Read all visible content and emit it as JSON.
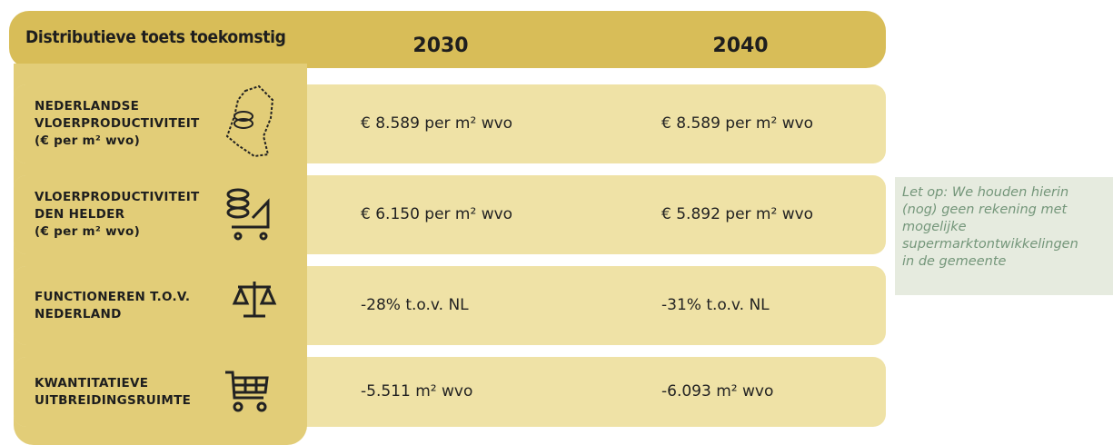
{
  "header": {
    "title": "Distributieve toets toekomstig",
    "columns": [
      "2030",
      "2040"
    ]
  },
  "table": {
    "rows": [
      {
        "label": [
          "NEDERLANDSE",
          "VLOERPRODUCTIVITEIT",
          "(€ per m² wvo)"
        ],
        "values": [
          "€ 8.589 per m² wvo",
          "€ 8.589 per m² wvo"
        ]
      },
      {
        "label": [
          "VLOERPRODUCTIVITEIT",
          "DEN HELDER",
          "(€ per m² wvo)"
        ],
        "values": [
          "€ 6.150 per m² wvo",
          "€ 5.892 per m² wvo"
        ]
      },
      {
        "label": [
          "FUNCTIONEREN T.O.V.",
          "NEDERLAND"
        ],
        "values": [
          "-28% t.o.v. NL",
          "-31% t.o.v. NL"
        ]
      },
      {
        "label": [
          "KWANTITATIEVE",
          "UITBREIDINGSRUIMTE"
        ],
        "values": [
          "-5.511 m² wvo",
          "-6.093 m² wvo"
        ]
      }
    ]
  },
  "note": [
    "Let op: We houden hierin",
    "(nog) geen rekening met",
    "mogelijke",
    "supermarktontwikkelingen",
    "in de gemeente"
  ]
}
